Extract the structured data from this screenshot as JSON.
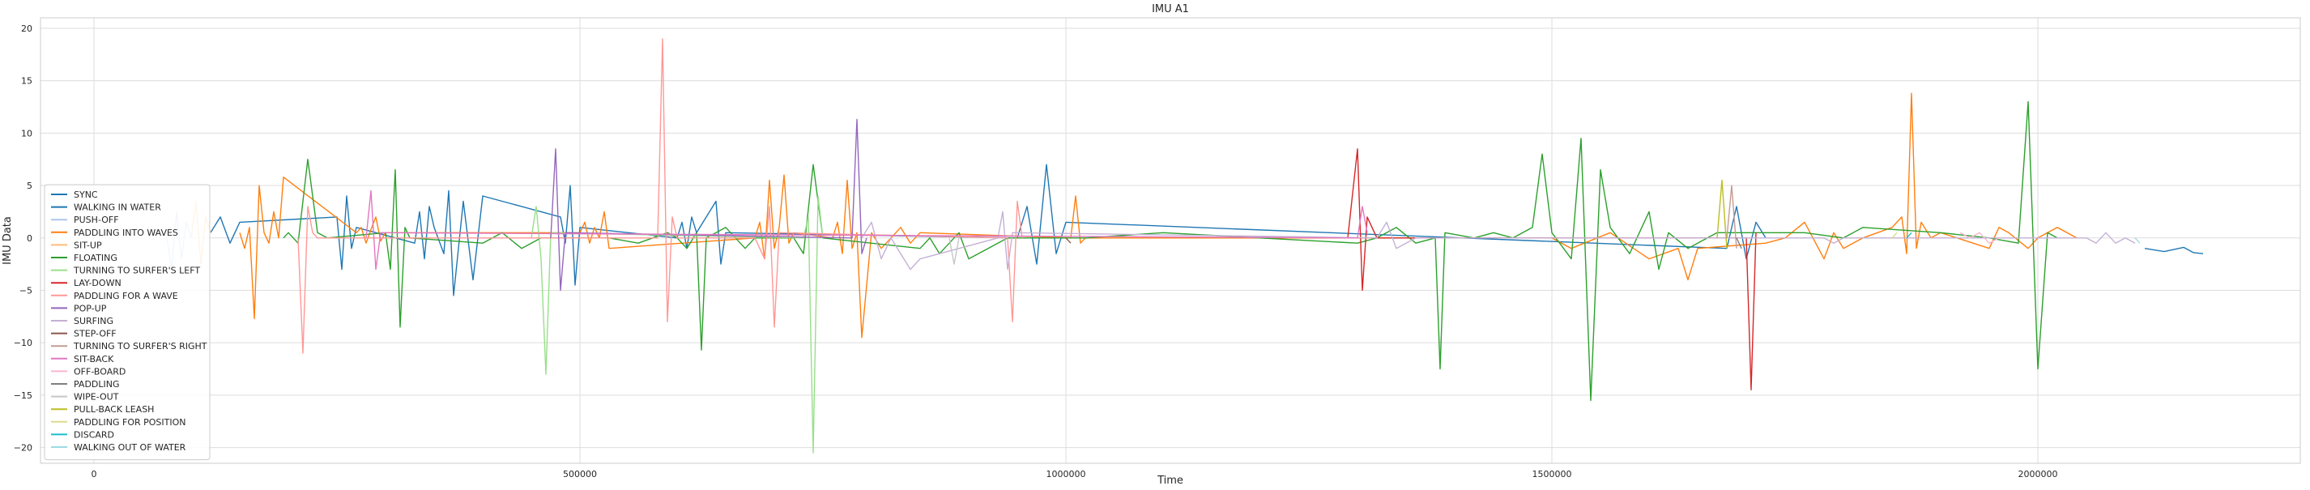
{
  "chart_data": {
    "type": "line",
    "title": "IMU A1",
    "xlabel": "Time",
    "ylabel": "IMU Data",
    "xlim": [
      -55000,
      2270000
    ],
    "ylim": [
      -21.5,
      21
    ],
    "xticks": [
      0,
      500000,
      1000000,
      1500000,
      2000000
    ],
    "xtick_labels": [
      "0",
      "500000",
      "1000000",
      "1500000",
      "2000000"
    ],
    "yticks": [
      -20,
      -15,
      -10,
      -5,
      0,
      5,
      10,
      15,
      20
    ],
    "ytick_labels": [
      "−20",
      "−15",
      "−10",
      "−5",
      "0",
      "5",
      "10",
      "15",
      "20"
    ],
    "grid": true,
    "legend_position": "lower-left",
    "colors": {
      "SYNC": "#1f77b4",
      "WALKING IN WATER": "#1f77b4",
      "PUSH-OFF": "#aec7e8",
      "PADDLING INTO WAVES": "#ff7f0e",
      "SIT-UP": "#ffbb78",
      "FLOATING": "#2ca02c",
      "TURNING TO SURFER'S LEFT": "#98df8a",
      "LAY-DOWN": "#d62728",
      "PADDLING FOR A WAVE": "#ff9896",
      "POP-UP": "#9467bd",
      "SURFING": "#c5b0d5",
      "STEP-OFF": "#8c564b",
      "TURNING TO SURFER'S RIGHT": "#c49c94",
      "SIT-BACK": "#e377c2",
      "OFF-BOARD": "#f7b6d2",
      "PADDLING": "#7f7f7f",
      "WIPE-OUT": "#c7c7c7",
      "PULL-BACK LEASH": "#bcbd22",
      "PADDLING FOR POSITION": "#dbdb8d",
      "DISCARD": "#17becf",
      "WALKING OUT OF WATER": "#9edae5"
    },
    "series": [
      {
        "name": "SYNC",
        "color": "#1f77b4",
        "x": [
          2110000,
          2130000,
          2150000,
          2160000,
          2170000
        ],
        "y": [
          -1.0,
          -1.3,
          -0.9,
          -1.4,
          -1.5
        ]
      },
      {
        "name": "WALKING IN WATER",
        "color": "#1f77b4",
        "x": [
          120000,
          130000,
          140000,
          150000,
          250000,
          255000,
          260000,
          265000,
          270000,
          330000,
          335000,
          340000,
          345000,
          350000,
          360000,
          365000,
          370000,
          380000,
          390000,
          400000,
          480000,
          485000,
          490000,
          495000,
          500000,
          600000,
          605000,
          610000,
          615000,
          620000,
          640000,
          645000,
          650000,
          950000,
          960000,
          970000,
          980000,
          990000,
          1000000,
          1680000,
          1690000,
          1700000,
          1710000,
          1720000
        ],
        "y": [
          0.5,
          2.0,
          -0.5,
          1.5,
          2.0,
          -3.0,
          4.0,
          -1.0,
          1.0,
          -0.5,
          2.5,
          -2.0,
          3.0,
          1.0,
          -1.5,
          4.5,
          -5.5,
          3.5,
          -4.0,
          4.0,
          2.0,
          -0.5,
          5.0,
          -4.5,
          1.0,
          0.0,
          1.5,
          -1.0,
          2.0,
          0.5,
          3.5,
          -2.5,
          0.5,
          0.0,
          3.0,
          -2.5,
          7.0,
          -1.5,
          1.5,
          -1.0,
          3.0,
          -2.0,
          1.5,
          0.0
        ]
      },
      {
        "name": "PUSH-OFF",
        "color": "#aec7e8",
        "x": [
          75000,
          80000,
          85000,
          90000,
          95000,
          100000
        ],
        "y": [
          0.0,
          -3.0,
          2.5,
          -2.0,
          1.5,
          0.0
        ]
      },
      {
        "name": "PADDLING INTO WAVES",
        "color": "#ff7f0e",
        "x": [
          150000,
          155000,
          160000,
          165000,
          170000,
          175000,
          180000,
          185000,
          190000,
          195000,
          270000,
          275000,
          280000,
          285000,
          290000,
          295000,
          300000,
          500000,
          505000,
          510000,
          515000,
          520000,
          525000,
          530000,
          680000,
          685000,
          690000,
          695000,
          700000,
          705000,
          710000,
          715000,
          720000,
          760000,
          765000,
          770000,
          775000,
          780000,
          785000,
          790000,
          800000,
          810000,
          820000,
          830000,
          840000,
          850000,
          1005000,
          1010000,
          1015000,
          1020000,
          1500000,
          1520000,
          1560000,
          1600000,
          1630000,
          1640000,
          1650000,
          1720000,
          1740000,
          1760000,
          1780000,
          1790000,
          1800000,
          1820000,
          1850000,
          1860000,
          1865000,
          1870000,
          1875000,
          1880000,
          1890000,
          1900000,
          1950000,
          1960000,
          1970000,
          1990000,
          2000000,
          2020000,
          2040000
        ],
        "y": [
          0.5,
          -1.0,
          1.0,
          -7.7,
          5.0,
          0.5,
          -0.5,
          2.5,
          0.0,
          5.8,
          0.5,
          1.0,
          -0.5,
          0.8,
          2.0,
          -0.3,
          0.5,
          0.5,
          1.5,
          -0.5,
          1.0,
          0.0,
          2.5,
          -1.0,
          0.0,
          1.5,
          -2.0,
          5.5,
          -1.0,
          1.0,
          6.0,
          -0.5,
          0.5,
          0.0,
          1.5,
          -1.5,
          5.5,
          -1.0,
          0.5,
          -9.5,
          0.5,
          -1.0,
          0.0,
          1.0,
          -0.5,
          0.5,
          0.0,
          4.0,
          -0.5,
          0.0,
          0.0,
          -1.0,
          0.5,
          -2.0,
          -1.0,
          -4.0,
          -1.0,
          -0.5,
          0.0,
          1.5,
          -2.0,
          0.5,
          -1.0,
          0.0,
          1.0,
          2.0,
          -1.5,
          13.8,
          -1.0,
          1.5,
          0.0,
          0.5,
          -1.0,
          1.0,
          0.5,
          -1.0,
          0.0,
          1.0,
          0.0
        ]
      },
      {
        "name": "SIT-UP",
        "color": "#ffbb78",
        "x": [
          100000,
          105000,
          110000,
          115000,
          120000
        ],
        "y": [
          0.0,
          3.5,
          -2.5,
          2.0,
          0.5
        ]
      },
      {
        "name": "FLOATING",
        "color": "#2ca02c",
        "x": [
          195000,
          200000,
          210000,
          220000,
          230000,
          240000,
          300000,
          305000,
          310000,
          315000,
          320000,
          325000,
          400000,
          420000,
          440000,
          460000,
          530000,
          560000,
          590000,
          600000,
          610000,
          620000,
          625000,
          630000,
          650000,
          670000,
          680000,
          720000,
          730000,
          740000,
          750000,
          850000,
          860000,
          870000,
          880000,
          890000,
          900000,
          920000,
          940000,
          1020000,
          1100000,
          1200000,
          1300000,
          1320000,
          1340000,
          1360000,
          1380000,
          1385000,
          1390000,
          1420000,
          1440000,
          1460000,
          1480000,
          1490000,
          1500000,
          1520000,
          1530000,
          1540000,
          1550000,
          1560000,
          1580000,
          1590000,
          1600000,
          1610000,
          1620000,
          1640000,
          1660000,
          1670000,
          1760000,
          1800000,
          1820000,
          1900000,
          1950000,
          1980000,
          1990000,
          2000000,
          2010000,
          2020000
        ],
        "y": [
          0.0,
          0.5,
          -0.5,
          7.5,
          0.5,
          0.0,
          0.5,
          -3.0,
          6.5,
          -8.5,
          1.0,
          0.0,
          -0.5,
          0.5,
          -1.0,
          0.0,
          0.0,
          -0.5,
          0.5,
          0.0,
          -1.0,
          0.5,
          -10.7,
          0.0,
          1.0,
          -1.0,
          0.0,
          0.0,
          -1.5,
          7.0,
          0.0,
          -1.0,
          0.0,
          -1.5,
          -0.5,
          0.5,
          -2.0,
          -1.0,
          0.0,
          0.0,
          0.5,
          0.0,
          -0.5,
          0.0,
          1.0,
          -0.5,
          0.0,
          -12.5,
          0.5,
          0.0,
          0.5,
          0.0,
          1.0,
          8.0,
          0.5,
          -2.0,
          9.5,
          -15.5,
          6.5,
          1.0,
          -1.5,
          0.5,
          2.5,
          -3.0,
          0.5,
          -1.0,
          0.0,
          0.5,
          0.5,
          0.0,
          1.0,
          0.5,
          0.0,
          -0.5,
          13.0,
          -12.5,
          0.5,
          0.0
        ]
      },
      {
        "name": "TURNING TO SURFER'S LEFT",
        "color": "#98df8a",
        "x": [
          450000,
          455000,
          460000,
          465000,
          470000,
          730000,
          735000,
          740000,
          745000,
          750000
        ],
        "y": [
          0.0,
          3.0,
          -2.0,
          -13.0,
          0.5,
          0.0,
          2.0,
          -20.5,
          4.0,
          0.0
        ]
      },
      {
        "name": "LAY-DOWN",
        "color": "#d62728",
        "x": [
          1290000,
          1300000,
          1305000,
          1310000,
          1320000,
          1700000,
          1705000,
          1710000
        ],
        "y": [
          0.0,
          8.5,
          -5.0,
          2.0,
          0.0,
          0.0,
          -14.5,
          0.5
        ]
      },
      {
        "name": "PADDLING FOR A WAVE",
        "color": "#ff9896",
        "x": [
          210000,
          215000,
          220000,
          225000,
          230000,
          580000,
          585000,
          590000,
          595000,
          600000,
          680000,
          690000,
          695000,
          700000,
          705000,
          940000,
          945000,
          950000,
          955000
        ],
        "y": [
          0.0,
          -11.0,
          3.0,
          0.5,
          0.0,
          0.0,
          19.0,
          -8.0,
          2.0,
          0.0,
          0.0,
          -2.0,
          3.0,
          -8.5,
          0.5,
          0.0,
          -8.0,
          3.5,
          0.0
        ]
      },
      {
        "name": "POP-UP",
        "color": "#9467bd",
        "x": [
          470000,
          475000,
          480000,
          485000,
          780000,
          785000,
          790000,
          795000
        ],
        "y": [
          0.0,
          8.5,
          -5.0,
          0.5,
          0.0,
          11.3,
          -1.5,
          0.0
        ]
      },
      {
        "name": "SURFING",
        "color": "#c5b0d5",
        "x": [
          790000,
          800000,
          810000,
          820000,
          830000,
          840000,
          850000,
          930000,
          935000,
          940000,
          945000,
          1320000,
          1330000,
          1340000,
          1350000,
          1360000,
          1780000,
          1790000,
          1800000,
          2050000,
          2060000,
          2070000,
          2080000,
          2090000,
          2100000
        ],
        "y": [
          0.0,
          1.5,
          -2.0,
          0.0,
          -1.5,
          -3.0,
          -2.0,
          0.0,
          2.5,
          -3.0,
          0.5,
          0.0,
          1.5,
          -1.0,
          -0.5,
          0.0,
          0.0,
          -0.5,
          0.0,
          0.0,
          -0.5,
          0.5,
          -0.5,
          0.0,
          -0.5
        ]
      },
      {
        "name": "STEP-OFF",
        "color": "#8c564b",
        "x": [
          1000000,
          1005000
        ],
        "y": [
          0.0,
          -0.5
        ]
      },
      {
        "name": "TURNING TO SURFER'S RIGHT",
        "color": "#c49c94",
        "x": [
          1680000,
          1685000,
          1690000
        ],
        "y": [
          0.0,
          5.0,
          -1.0
        ]
      },
      {
        "name": "SIT-BACK",
        "color": "#e377c2",
        "x": [
          280000,
          285000,
          290000,
          295000,
          1300000,
          1305000,
          1310000
        ],
        "y": [
          0.0,
          4.5,
          -3.0,
          0.5,
          0.0,
          3.0,
          0.5
        ]
      },
      {
        "name": "OFF-BOARD",
        "color": "#f7b6d2",
        "x": [
          1920000,
          1930000,
          1940000,
          1950000,
          1960000
        ],
        "y": [
          0.5,
          0.0,
          0.5,
          -0.5,
          0.0
        ]
      },
      {
        "name": "PADDLING",
        "color": "#7f7f7f",
        "x": [
          1690000,
          1695000
        ],
        "y": [
          0.0,
          -1.0
        ]
      },
      {
        "name": "WIPE-OUT",
        "color": "#c7c7c7",
        "x": [
          880000,
          885000,
          890000
        ],
        "y": [
          0.0,
          -2.5,
          0.0
        ]
      },
      {
        "name": "PULL-BACK LEASH",
        "color": "#bcbd22",
        "x": [
          1670000,
          1675000,
          1680000
        ],
        "y": [
          0.0,
          5.5,
          -1.0
        ]
      },
      {
        "name": "PADDLING FOR POSITION",
        "color": "#dbdb8d",
        "x": [
          1850000,
          1855000
        ],
        "y": [
          0.0,
          0.5
        ]
      },
      {
        "name": "DISCARD",
        "color": "#17becf",
        "x": [
          1865000,
          1870000
        ],
        "y": [
          0.0,
          0.5
        ]
      },
      {
        "name": "WALKING OUT OF WATER",
        "color": "#9edae5",
        "x": [
          2100000,
          2105000
        ],
        "y": [
          0.0,
          -0.5
        ]
      }
    ]
  }
}
